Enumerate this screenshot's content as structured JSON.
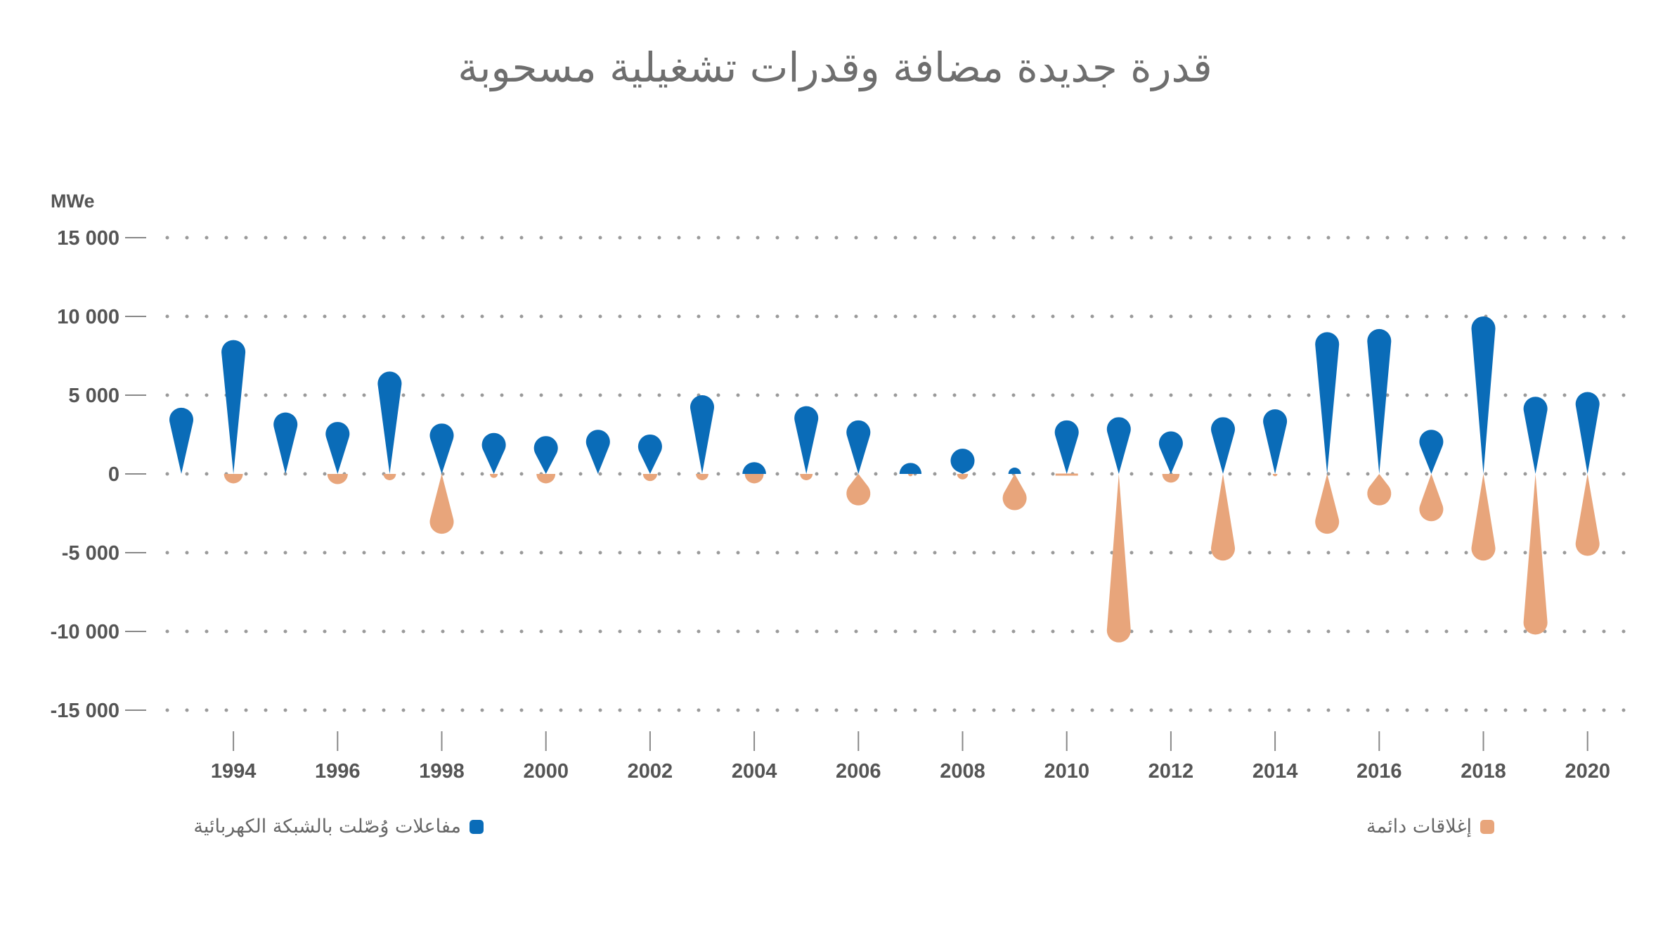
{
  "chart_data": {
    "type": "bar",
    "title": "قدرة جديدة مضافة وقدرات تشغيلية مسحوبة",
    "unit_label": "MWe",
    "ylim": [
      -15000,
      15000
    ],
    "y_ticks": [
      15000,
      10000,
      5000,
      0,
      -5000,
      -10000,
      -15000
    ],
    "y_tick_labels": [
      "15 000",
      "10 000",
      "5 000",
      "0",
      "-5 000",
      "-10 000",
      "-15 000"
    ],
    "x_tick_labels": [
      "1994",
      "1996",
      "1998",
      "2000",
      "2002",
      "2004",
      "2006",
      "2008",
      "2010",
      "2012",
      "2014",
      "2016",
      "2018",
      "2020"
    ],
    "grid": true,
    "legend_placement": "bottom",
    "categories": [
      1993,
      1994,
      1995,
      1996,
      1997,
      1998,
      1999,
      2000,
      2001,
      2002,
      2003,
      2004,
      2005,
      2006,
      2007,
      2008,
      2009,
      2010,
      2011,
      2012,
      2013,
      2014,
      2015,
      2016,
      2017,
      2018,
      2019,
      2020
    ],
    "series": [
      {
        "name": "مفاعلات وُصّلت بالشبكة الكهربائية",
        "color": "#0A6CB8",
        "values": [
          4200,
          8500,
          3900,
          3300,
          6500,
          3200,
          2600,
          2400,
          2800,
          2500,
          5000,
          1500,
          4300,
          3400,
          1400,
          1600,
          800,
          3400,
          3600,
          2700,
          3600,
          4100,
          9000,
          9200,
          2800,
          10000,
          4900,
          5200
        ]
      },
      {
        "name": "إغلاقات دائمة",
        "color": "#E8A57B",
        "values": [
          0,
          -1200,
          0,
          -1300,
          -800,
          -3800,
          -500,
          -1200,
          0,
          -900,
          -800,
          -1200,
          -800,
          -2000,
          -300,
          -700,
          -2300,
          -100,
          -10700,
          -1100,
          -5500,
          -300,
          -3800,
          -2000,
          -3000,
          -5500,
          -10200,
          -5200
        ]
      }
    ]
  },
  "legend": {
    "grid_label": "مفاعلات وُصّلت بالشبكة الكهربائية",
    "shutdown_label": "إغلاقات دائمة"
  }
}
